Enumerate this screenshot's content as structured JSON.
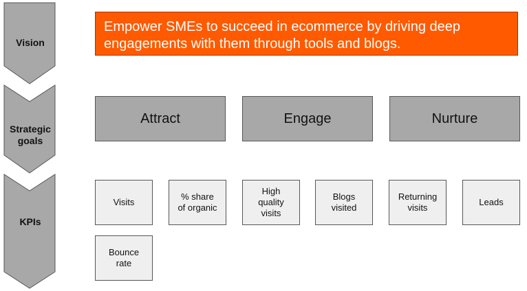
{
  "stages": {
    "vision": "Vision",
    "strategic_goals_line1": "Strategic",
    "strategic_goals_line2": "goals",
    "kpis": "KPIs"
  },
  "vision_statement": "Empower SMEs to succeed in ecommerce by driving deep engagements with them through tools and blogs.",
  "goals": [
    "Attract",
    "Engage",
    "Nurture"
  ],
  "kpis": {
    "visits": "Visits",
    "share_organic_l1": "% share",
    "share_organic_l2": "of organic",
    "high_quality_l1": "High",
    "high_quality_l2": "quality",
    "high_quality_l3": "visits",
    "blogs_l1": "Blogs",
    "blogs_l2": "visited",
    "returning_l1": "Returning",
    "returning_l2": "visits",
    "leads": "Leads",
    "bounce_l1": "Bounce",
    "bounce_l2": "rate"
  },
  "colors": {
    "vision_fill": "#ff5a00",
    "goal_fill": "#a8a8a8",
    "kpi_fill": "#efefef",
    "chevron_fill": "#a8a8a8"
  }
}
